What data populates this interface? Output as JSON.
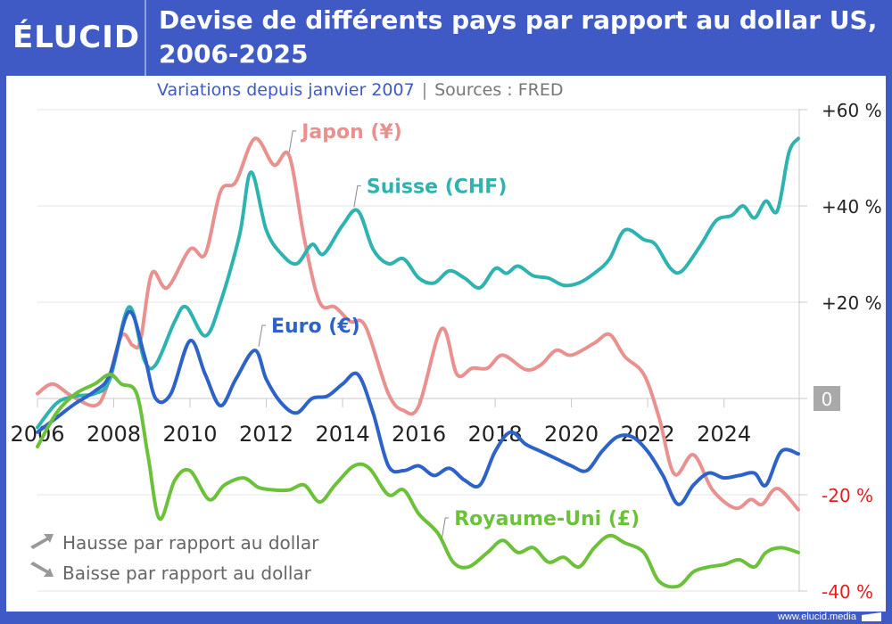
{
  "header": {
    "logo": "ÉLUCID",
    "title": "Devise de différents pays par rapport au dollar US, 2006-2025"
  },
  "subtitle": {
    "main": "Variations depuis janvier 2007",
    "separator": "|",
    "sources": "Sources : FRED"
  },
  "legend": {
    "up": {
      "icon": "arrow-up-right-icon",
      "label": "Hausse par rapport au dollar"
    },
    "down": {
      "icon": "arrow-down-right-icon",
      "label": "Baisse par rapport au dollar"
    }
  },
  "footer": {
    "url": "www.elucid.media"
  },
  "colors": {
    "brand": "#3f5ac5",
    "japon": "#e8918f",
    "suisse": "#2fb3b0",
    "euro": "#2d62c8",
    "royaume_uni": "#6cc13a",
    "negative_axis": "#e02020"
  },
  "chart_data": {
    "type": "line",
    "title": "Devise de différents pays par rapport au dollar US, 2006-2025",
    "subtitle": "Variations depuis janvier 2007",
    "xlabel": "",
    "ylabel": "",
    "xlim": [
      2006,
      2026
    ],
    "ylim": [
      -40,
      60
    ],
    "x_ticks": [
      2006,
      2008,
      2010,
      2012,
      2014,
      2016,
      2018,
      2020,
      2022,
      2024
    ],
    "x_tick_labels": [
      "2006",
      "2008",
      "2010",
      "2012",
      "2014",
      "2016",
      "2018",
      "2020",
      "2022",
      "2024"
    ],
    "y_ticks": [
      60,
      40,
      20,
      0,
      -20,
      -40
    ],
    "y_tick_labels": [
      "+60 %",
      "+40 %",
      "+20 %",
      "0",
      "-20 %",
      "-40 %"
    ],
    "grid": true,
    "y_axis_side": "right",
    "series": [
      {
        "name": "Japon (¥)",
        "key": "japon",
        "x": [
          2006.0,
          2006.4,
          2006.9,
          2007.5,
          2007.8,
          2008.2,
          2008.5,
          2008.7,
          2009.0,
          2009.4,
          2010.0,
          2010.4,
          2010.8,
          2011.2,
          2011.7,
          2012.2,
          2012.6,
          2013.0,
          2013.4,
          2013.8,
          2014.2,
          2014.6,
          2015.2,
          2015.6,
          2016.0,
          2016.6,
          2017.0,
          2017.4,
          2017.8,
          2018.2,
          2018.8,
          2019.2,
          2019.6,
          2020.0,
          2020.6,
          2021.0,
          2021.4,
          2021.9,
          2022.3,
          2022.7,
          2023.2,
          2023.7,
          2024.3,
          2024.7,
          2025.0,
          2025.4,
          2025.95
        ],
        "values": [
          1,
          3,
          0.5,
          -1.5,
          2,
          13,
          11,
          12,
          26,
          23,
          31,
          30,
          43,
          45,
          54,
          48.5,
          50.4,
          33,
          20,
          19,
          16,
          15,
          1,
          -2.5,
          -1.5,
          14.5,
          5,
          6.3,
          6.3,
          9,
          6,
          7,
          10,
          9,
          11.5,
          13.3,
          8.7,
          5,
          -4,
          -15.7,
          -11.7,
          -19,
          -22.8,
          -21,
          -22,
          -18.7,
          -23.1
        ]
      },
      {
        "name": "Suisse (CHF)",
        "key": "suisse",
        "x": [
          2006.0,
          2006.5,
          2007.0,
          2007.5,
          2007.9,
          2008.4,
          2008.8,
          2009.1,
          2009.6,
          2009.9,
          2010.4,
          2010.8,
          2011.3,
          2011.6,
          2012.0,
          2012.4,
          2012.8,
          2013.2,
          2013.5,
          2014.0,
          2014.4,
          2014.8,
          2015.2,
          2015.6,
          2016.0,
          2016.4,
          2016.8,
          2017.2,
          2017.6,
          2018.0,
          2018.3,
          2018.6,
          2019.0,
          2019.4,
          2019.8,
          2020.2,
          2020.6,
          2021.0,
          2021.4,
          2021.9,
          2022.2,
          2022.6,
          2022.9,
          2023.4,
          2023.8,
          2024.2,
          2024.5,
          2024.8,
          2025.1,
          2025.4,
          2025.7,
          2025.95
        ],
        "values": [
          -6,
          -1,
          0.5,
          1,
          4,
          19,
          8,
          7,
          16,
          19,
          13,
          20,
          34,
          47,
          35,
          30,
          28,
          32,
          30,
          36,
          39,
          31,
          28,
          29,
          25,
          24,
          26.5,
          25,
          23,
          27,
          26,
          27.5,
          25.5,
          25,
          23.5,
          24,
          26,
          29,
          35,
          33,
          32,
          27,
          26.5,
          32,
          37,
          38,
          40,
          37.5,
          41,
          39,
          51,
          54
        ]
      },
      {
        "name": "Euro (€)",
        "key": "euro",
        "x": [
          2006.0,
          2006.5,
          2007.0,
          2007.5,
          2007.9,
          2008.4,
          2008.8,
          2009.1,
          2009.5,
          2010.0,
          2010.4,
          2010.8,
          2011.2,
          2011.7,
          2012.0,
          2012.4,
          2012.8,
          2013.2,
          2013.6,
          2014.0,
          2014.4,
          2014.8,
          2015.2,
          2015.6,
          2016.0,
          2016.4,
          2016.8,
          2017.2,
          2017.6,
          2018.0,
          2018.4,
          2018.8,
          2019.2,
          2019.6,
          2020.0,
          2020.4,
          2020.8,
          2021.2,
          2021.6,
          2022.0,
          2022.4,
          2022.8,
          2023.2,
          2023.6,
          2024.0,
          2024.4,
          2024.8,
          2025.1,
          2025.5,
          2025.95
        ],
        "values": [
          -7,
          -4,
          -1,
          1.5,
          5,
          18,
          9,
          0,
          1,
          12,
          5,
          -1.5,
          4,
          10,
          4,
          -1,
          -3,
          0,
          0.5,
          3,
          5,
          -3,
          -14,
          -15,
          -14,
          -16,
          -14.5,
          -17,
          -18,
          -11,
          -7,
          -9.5,
          -11,
          -12.5,
          -14,
          -15,
          -11,
          -8,
          -8,
          -11,
          -16,
          -22,
          -18,
          -15.5,
          -16.5,
          -16,
          -15.5,
          -18,
          -11,
          -11.5
        ]
      },
      {
        "name": "Royaume-Uni (£)",
        "key": "royaume_uni",
        "x": [
          2006.0,
          2006.5,
          2007.0,
          2007.5,
          2007.9,
          2008.2,
          2008.6,
          2008.9,
          2009.2,
          2009.6,
          2010.0,
          2010.5,
          2010.9,
          2011.4,
          2011.8,
          2012.2,
          2012.6,
          2013.0,
          2013.4,
          2013.8,
          2014.3,
          2014.7,
          2015.2,
          2015.6,
          2016.0,
          2016.5,
          2016.9,
          2017.3,
          2017.8,
          2018.2,
          2018.6,
          2019.0,
          2019.4,
          2019.8,
          2020.2,
          2020.6,
          2021.0,
          2021.4,
          2021.9,
          2022.3,
          2022.8,
          2023.2,
          2023.6,
          2024.0,
          2024.4,
          2024.8,
          2025.1,
          2025.5,
          2025.95
        ],
        "values": [
          -10,
          -3,
          1,
          3,
          5,
          3,
          1,
          -12,
          -25,
          -17,
          -15,
          -21,
          -18,
          -16.5,
          -18.5,
          -19,
          -19,
          -18,
          -21.5,
          -18,
          -14,
          -14.5,
          -20,
          -19,
          -24,
          -28,
          -34,
          -35,
          -32,
          -29.5,
          -32,
          -31,
          -34,
          -33,
          -35,
          -31,
          -28.5,
          -30,
          -32,
          -38,
          -39,
          -36,
          -35,
          -34.5,
          -33.5,
          -35,
          -32,
          -31,
          -32
        ]
      }
    ],
    "annotations": [
      {
        "text": "Japon (¥)",
        "series": "japon",
        "anchor_x": 2012.6,
        "anchor_y": 50.4
      },
      {
        "text": "Suisse (CHF)",
        "series": "suisse",
        "anchor_x": 2014.3,
        "anchor_y": 39
      },
      {
        "text": "Euro (€)",
        "series": "euro",
        "anchor_x": 2011.8,
        "anchor_y": 10
      },
      {
        "text": "Royaume-Uni (£)",
        "series": "royaume_uni",
        "anchor_x": 2016.6,
        "anchor_y": -30
      }
    ]
  }
}
